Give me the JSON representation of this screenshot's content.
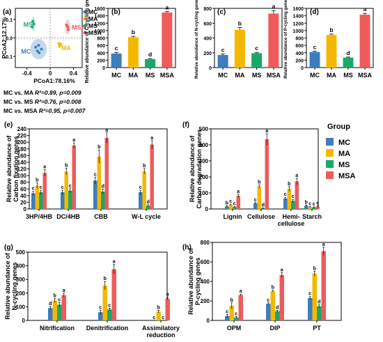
{
  "colors": {
    "MC": "#3b7dbf",
    "MA": "#f5b800",
    "MS": "#1aa86a",
    "MSA": "#ef5b5b",
    "axis": "#000000"
  },
  "legend_title": "Group",
  "groups": [
    "MC",
    "MA",
    "MS",
    "MSA"
  ],
  "stats": [
    {
      "prefix": "MC vs. MA ",
      "r2": "R²=0.89, ",
      "p": "p=0.009"
    },
    {
      "prefix": "MC vs. MS ",
      "r2": "R²=0.76, ",
      "p": "p=0.008"
    },
    {
      "prefix": "MC vs. MSA ",
      "r2": "R²=0.95, ",
      "p": "p=0.007"
    }
  ],
  "chart_data": [
    {
      "id": "a",
      "type": "scatter",
      "panel_label": "(a)",
      "xlabel": "PCoA1:78.16%",
      "ylabel": "PCoA2:12.17%",
      "xticks": [
        "-0.4",
        "0",
        "0.4"
      ],
      "xlim": [
        -0.6,
        0.55
      ],
      "yticks": [
        "-0.1",
        "0.0",
        "0.1"
      ],
      "ylim": [
        -0.16,
        0.16
      ],
      "series": [
        {
          "name": "MC",
          "x": [
            -0.25,
            -0.2,
            -0.15,
            -0.19,
            -0.22
          ],
          "y": [
            -0.05,
            -0.04,
            -0.06,
            -0.08,
            -0.07
          ],
          "ellipse": {
            "cx": -0.2,
            "cy": -0.06,
            "rx": 0.14,
            "ry": 0.055
          }
        },
        {
          "name": "MA",
          "x": [
            0.15,
            0.18,
            0.16
          ],
          "y": [
            -0.03,
            -0.035,
            -0.045
          ]
        },
        {
          "name": "MS",
          "x": [
            -0.3,
            -0.28,
            -0.31
          ],
          "y": [
            0.09,
            0.075,
            0.06
          ],
          "ellipse": {
            "cx": -0.29,
            "cy": 0.075,
            "rx": 0.025,
            "ry": 0.04
          }
        },
        {
          "name": "MSA",
          "x": [
            0.28,
            0.3,
            0.31
          ],
          "y": [
            0.07,
            0.06,
            0.045
          ],
          "ellipse": {
            "cx": 0.3,
            "cy": 0.06,
            "rx": 0.045,
            "ry": 0.04
          }
        }
      ],
      "point_labels": [
        {
          "text": "MC",
          "group": "MC",
          "x": -0.5,
          "y": -0.085
        },
        {
          "text": "MA",
          "group": "MA",
          "x": 0.19,
          "y": -0.065
        },
        {
          "text": "MS",
          "group": "MS",
          "x": -0.46,
          "y": 0.06
        },
        {
          "text": "MSA",
          "group": "MSA",
          "x": 0.37,
          "y": 0.045
        }
      ],
      "legend": [
        "MC",
        "MA",
        "MS",
        "MSA"
      ]
    },
    {
      "id": "b",
      "type": "bar",
      "panel_label": "(b)",
      "ylabel": "Relative abundance of C-cycling genes",
      "categories": [
        "MC",
        "MA",
        "MS",
        "MSA"
      ],
      "values": [
        380,
        820,
        230,
        1490
      ],
      "errors": [
        30,
        25,
        15,
        30
      ],
      "letters": [
        "c",
        "b",
        "d",
        "a"
      ],
      "ylim": [
        0,
        1600
      ],
      "yticks": [
        0,
        200,
        400,
        600,
        800,
        1000,
        1200,
        1400,
        1600
      ]
    },
    {
      "id": "c",
      "type": "bar",
      "panel_label": "(c)",
      "ylabel": "Relative abundance of N-cycling genes",
      "categories": [
        "MC",
        "MA",
        "MS",
        "MSA"
      ],
      "values": [
        170,
        510,
        195,
        730
      ],
      "errors": [
        15,
        30,
        10,
        40
      ],
      "letters": [
        "c",
        "b",
        "c",
        "a"
      ],
      "ylim": [
        0,
        800
      ],
      "yticks": [
        0,
        200,
        400,
        600,
        800
      ]
    },
    {
      "id": "d",
      "type": "bar",
      "panel_label": "(d)",
      "ylabel": "Relative abundance of P-cycling genes",
      "categories": [
        "MC",
        "MA",
        "MS",
        "MSA"
      ],
      "values": [
        420,
        880,
        270,
        1430
      ],
      "errors": [
        20,
        25,
        15,
        35
      ],
      "letters": [
        "c",
        "b",
        "d",
        "a"
      ],
      "ylim": [
        0,
        1600
      ],
      "yticks": [
        0,
        200,
        400,
        600,
        800,
        1000,
        1200,
        1400,
        1600
      ]
    },
    {
      "id": "e",
      "type": "bar",
      "panel_label": "(e)",
      "ylabel": [
        "Relative abundance of",
        "Carbon fixation genes"
      ],
      "categories": [
        "3HP/4HB",
        "DC/4HB",
        "CBB",
        "W-L cycle"
      ],
      "series": [
        {
          "name": "MC",
          "values": [
            47,
            50,
            85,
            50
          ],
          "errors": [
            6,
            6,
            10,
            6
          ],
          "letters": [
            "c",
            "c",
            "c",
            "c"
          ]
        },
        {
          "name": "MA",
          "values": [
            70,
            112,
            157,
            113
          ],
          "errors": [
            8,
            10,
            20,
            8
          ],
          "letters": [
            "b",
            "b",
            "b",
            "b"
          ]
        },
        {
          "name": "MS",
          "values": [
            50,
            55,
            52,
            10
          ],
          "errors": [
            6,
            6,
            8,
            3
          ],
          "letters": [
            "c",
            "c",
            "d",
            "d"
          ]
        },
        {
          "name": "MSA",
          "values": [
            108,
            190,
            213,
            193
          ],
          "errors": [
            10,
            8,
            15,
            12
          ],
          "letters": [
            "a",
            "a",
            "a",
            "a"
          ]
        }
      ],
      "ylim": [
        0,
        240
      ],
      "yticks": [
        0,
        20,
        40,
        60,
        80,
        100,
        120,
        140,
        160,
        180,
        200,
        220,
        240
      ]
    },
    {
      "id": "f",
      "type": "bar",
      "panel_label": "(f)",
      "ylabel": [
        "Relative abundance of",
        "Carbon degradation genes"
      ],
      "categories": [
        "Lignin",
        "Cellulose",
        [
          "Hemi-",
          "cellulose"
        ],
        "Starch"
      ],
      "series": [
        {
          "name": "MC",
          "values": [
            15,
            35,
            65,
            20
          ],
          "errors": [
            5,
            5,
            8,
            5
          ],
          "letters": [
            "b",
            "c",
            "c",
            "b"
          ]
        },
        {
          "name": "MA",
          "values": [
            25,
            140,
            125,
            12
          ],
          "errors": [
            5,
            10,
            15,
            3
          ],
          "letters": [
            "c",
            "b",
            "b",
            "c"
          ]
        },
        {
          "name": "MS",
          "values": [
            12,
            5,
            50,
            10
          ],
          "errors": [
            3,
            2,
            10,
            3
          ],
          "letters": [
            "c",
            "d",
            "c",
            "c"
          ]
        },
        {
          "name": "MSA",
          "values": [
            82,
            435,
            172,
            15
          ],
          "errors": [
            10,
            35,
            20,
            5
          ],
          "letters": [
            "a",
            "a",
            "a",
            "c"
          ]
        }
      ],
      "ylim": [
        0,
        500
      ],
      "yticks": [
        0,
        100,
        200,
        300,
        400,
        500
      ]
    },
    {
      "id": "g",
      "type": "bar",
      "panel_label": "(g)",
      "ylabel": [
        "Relative abundance of",
        "N-cycling genes"
      ],
      "categories": [
        "Nitrification",
        "Denitrification",
        [
          "Assimilatory",
          "reduction"
        ]
      ],
      "series": [
        {
          "name": "MC",
          "values": [
            90,
            60,
            0
          ],
          "errors": [
            12,
            15,
            0
          ],
          "letters": [
            "d",
            "c",
            "c"
          ]
        },
        {
          "name": "MA",
          "values": [
            145,
            255,
            65
          ],
          "errors": [
            15,
            30,
            10
          ],
          "letters": [
            "b",
            "b",
            "b"
          ]
        },
        {
          "name": "MS",
          "values": [
            115,
            80,
            0
          ],
          "errors": [
            15,
            10,
            0
          ],
          "letters": [
            "c",
            "c",
            "c"
          ]
        },
        {
          "name": "MSA",
          "values": [
            185,
            375,
            160
          ],
          "errors": [
            15,
            35,
            10
          ],
          "letters": [
            "a",
            "a",
            "a"
          ]
        }
      ],
      "ylim": [
        0,
        500
      ],
      "yticks": [
        0,
        100,
        200,
        300,
        400,
        500
      ]
    },
    {
      "id": "h",
      "type": "bar",
      "panel_label": "(h)",
      "ylabel": [
        "Relative abundance of",
        "P-cycling genes"
      ],
      "categories": [
        "OPM",
        "DIP",
        "PT"
      ],
      "series": [
        {
          "name": "MC",
          "values": [
            45,
            170,
            230
          ],
          "errors": [
            15,
            10,
            15
          ],
          "letters": [
            "c",
            "c",
            "c"
          ]
        },
        {
          "name": "MA",
          "values": [
            150,
            300,
            480
          ],
          "errors": [
            30,
            10,
            25
          ],
          "letters": [
            "b",
            "b",
            "b"
          ]
        },
        {
          "name": "MS",
          "values": [
            30,
            95,
            145
          ],
          "errors": [
            10,
            10,
            15
          ],
          "letters": [
            "c",
            "d",
            "d"
          ]
        },
        {
          "name": "MSA",
          "values": [
            260,
            465,
            710
          ],
          "errors": [
            10,
            25,
            40
          ],
          "letters": [
            "a",
            "a",
            "a"
          ]
        }
      ],
      "ylim": [
        0,
        800
      ],
      "yticks": [
        0,
        200,
        400,
        600,
        800
      ]
    }
  ]
}
